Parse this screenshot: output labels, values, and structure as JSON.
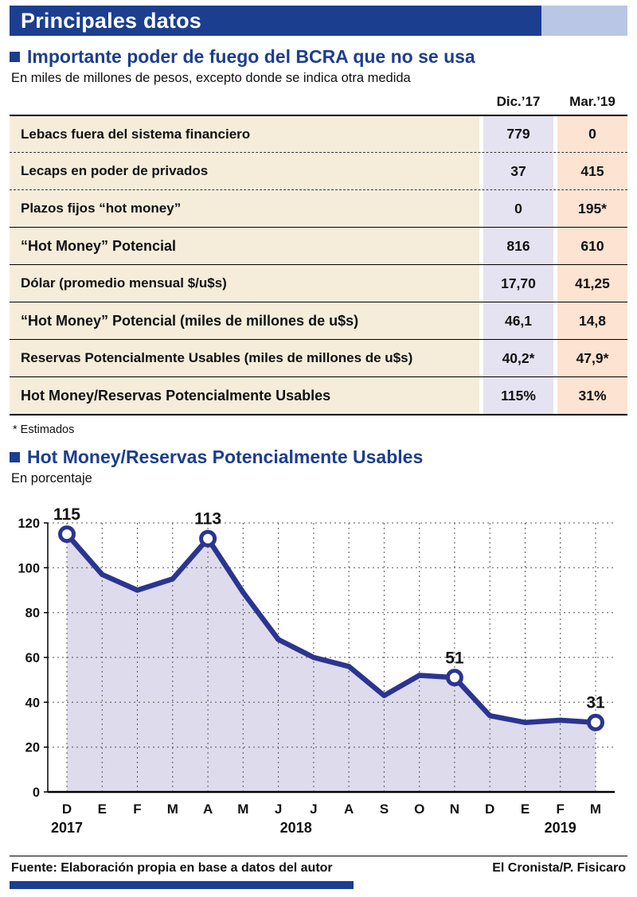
{
  "colors": {
    "navy": "#1c3e8f",
    "light_blue": "#b9c7e4",
    "cream": "#f5edda",
    "lavender": "#e5e2f1",
    "peach": "#fde3d1"
  },
  "header": {
    "title": "Principales datos"
  },
  "section1": {
    "title": "Importante poder de fuego del BCRA que no se usa",
    "subtitle": "En miles de millones de pesos, excepto donde se indica otra medida"
  },
  "table": {
    "col_headers": [
      "Dic.’17",
      "Mar.’19"
    ],
    "rows": [
      {
        "label": "Lebacs fuera del sistema financiero",
        "v1": "779",
        "v2": "0",
        "bold": false
      },
      {
        "label": "Lecaps en poder de privados",
        "v1": "37",
        "v2": "415",
        "bold": false
      },
      {
        "label": "Plazos fijos “hot money”",
        "v1": "0",
        "v2": "195*",
        "bold": false
      },
      {
        "label": "“Hot Money” Potencial",
        "v1": "816",
        "v2": "610",
        "bold": true
      },
      {
        "label": "Dólar (promedio mensual $/u$s)",
        "v1": "17,70",
        "v2": "41,25",
        "bold": false
      },
      {
        "label": "“Hot Money” Potencial (miles de millones de u$s)",
        "v1": "46,1",
        "v2": "14,8",
        "bold": true
      },
      {
        "label": "Reservas Potencialmente Usables (miles de millones de u$s)",
        "v1": "40,2*",
        "v2": "47,9*",
        "bold": false
      },
      {
        "label": "Hot Money/Reservas Potencialmente Usables",
        "v1": "115%",
        "v2": "31%",
        "bold": true
      }
    ],
    "footnote": "* Estimados"
  },
  "section2": {
    "title": "Hot Money/Reservas Potencialmente Usables",
    "subtitle": "En porcentaje"
  },
  "chart_data": {
    "type": "line",
    "title": "Hot Money/Reservas Potencialmente Usables",
    "ylabel": "En porcentaje",
    "x": [
      "D",
      "E",
      "F",
      "M",
      "A",
      "M",
      "J",
      "J",
      "A",
      "S",
      "O",
      "N",
      "D",
      "E",
      "F",
      "M"
    ],
    "values": [
      115,
      97,
      90,
      95,
      113,
      89,
      68,
      60,
      56,
      43,
      52,
      51,
      34,
      31,
      32,
      31
    ],
    "labeled_points": [
      {
        "index": 0,
        "label": "115"
      },
      {
        "index": 4,
        "label": "113"
      },
      {
        "index": 11,
        "label": "51"
      },
      {
        "index": 15,
        "label": "31"
      }
    ],
    "year_labels": [
      {
        "index": 0,
        "label": "2017"
      },
      {
        "index": 6.5,
        "label": "2018"
      },
      {
        "index": 14,
        "label": "2019"
      }
    ],
    "ylim": [
      0,
      120
    ],
    "yticks": [
      0,
      20,
      40,
      60,
      80,
      100,
      120
    ],
    "grid": true,
    "line_color": "#2b3590",
    "fill_color": "#dedbec"
  },
  "footer": {
    "source_label": "Fuente:",
    "source_text": "Elaboración propia en base a datos del autor",
    "credit": "El Cronista/P. Fisicaro"
  }
}
